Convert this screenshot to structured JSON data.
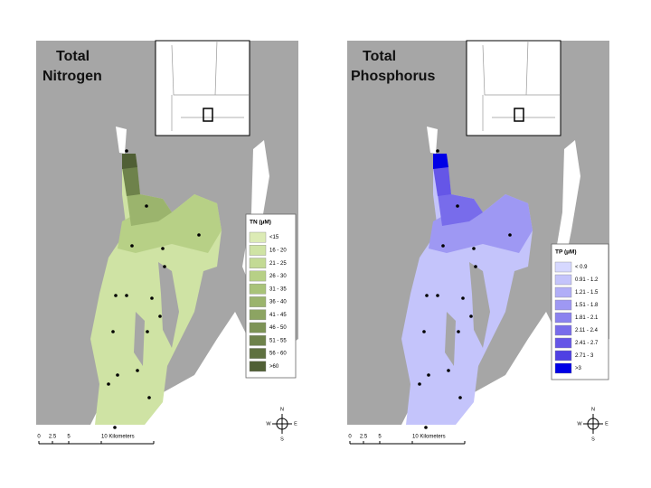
{
  "maps": [
    {
      "title_lines": [
        "Total",
        "Nitrogen"
      ],
      "legend": {
        "title": "TN (µM)",
        "items": [
          {
            "label": "<15",
            "color": "#dcebb5"
          },
          {
            "label": "16 - 20",
            "color": "#cfe3a4"
          },
          {
            "label": "21 - 25",
            "color": "#c3da94"
          },
          {
            "label": "26 - 30",
            "color": "#b7d086"
          },
          {
            "label": "31 - 35",
            "color": "#a9c379"
          },
          {
            "label": "36 - 40",
            "color": "#9bb46d"
          },
          {
            "label": "41 - 45",
            "color": "#8ca462"
          },
          {
            "label": "46 - 50",
            "color": "#7d9356"
          },
          {
            "label": "51 - 55",
            "color": "#6e824b"
          },
          {
            "label": "56 - 60",
            "color": "#5f7140"
          },
          {
            "label": ">60",
            "color": "#505f35"
          }
        ]
      },
      "scale": {
        "labels": [
          "0",
          "2.5",
          "5",
          "10 Kilometers"
        ]
      },
      "compass": {
        "n": "N",
        "e": "E",
        "s": "S",
        "w": "W"
      }
    },
    {
      "title_lines": [
        "Total",
        "Phosphorus"
      ],
      "legend": {
        "title": "TP (µM)",
        "items": [
          {
            "label": "< 0.9",
            "color": "#d6d8ff"
          },
          {
            "label": "0.91 - 1.2",
            "color": "#c4c4fb"
          },
          {
            "label": "1.21 - 1.5",
            "color": "#b1aef7"
          },
          {
            "label": "1.51 - 1.8",
            "color": "#9e98f3"
          },
          {
            "label": "1.81 - 2.1",
            "color": "#8b82ef"
          },
          {
            "label": "2.11 - 2.4",
            "color": "#786ceb"
          },
          {
            "label": "2.41 - 2.7",
            "color": "#6556e7"
          },
          {
            "label": "2.71 - 3",
            "color": "#4f40e3"
          },
          {
            "label": ">3",
            "color": "#0000e6"
          }
        ]
      },
      "scale": {
        "labels": [
          "0",
          "2.5",
          "5",
          "10 Kilometers"
        ]
      },
      "compass": {
        "n": "N",
        "e": "E",
        "s": "S",
        "w": "W"
      }
    }
  ]
}
